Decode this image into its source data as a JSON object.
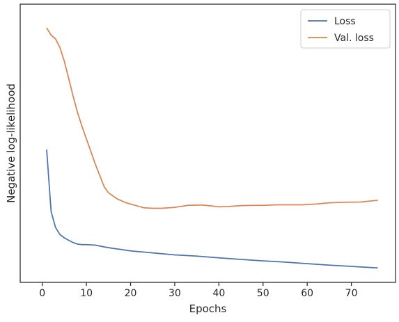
{
  "chart_data": {
    "type": "line",
    "xlabel": "Epochs",
    "ylabel": "Negative log-likelihood",
    "xlim": [
      -5,
      80
    ],
    "ylim": [
      0.0,
      1.0
    ],
    "xticks": [
      "0",
      "10",
      "20",
      "30",
      "40",
      "50",
      "60",
      "70"
    ],
    "yticks_visible": false,
    "grid": false,
    "legend_position": "top-right",
    "series": [
      {
        "name": "Loss",
        "color": "#4c72b0",
        "points": [
          [
            1,
            0.503
          ],
          [
            2,
            0.255
          ],
          [
            3,
            0.192
          ],
          [
            4,
            0.163
          ],
          [
            5,
            0.15
          ],
          [
            6,
            0.14
          ],
          [
            7,
            0.131
          ],
          [
            8,
            0.125
          ],
          [
            9,
            0.123
          ],
          [
            10,
            0.123
          ],
          [
            11,
            0.122
          ],
          [
            12,
            0.121
          ],
          [
            14,
            0.114
          ],
          [
            16,
            0.108
          ],
          [
            18,
            0.103
          ],
          [
            20,
            0.098
          ],
          [
            25,
            0.09
          ],
          [
            30,
            0.082
          ],
          [
            35,
            0.077
          ],
          [
            40,
            0.07
          ],
          [
            45,
            0.064
          ],
          [
            50,
            0.058
          ],
          [
            55,
            0.053
          ],
          [
            60,
            0.047
          ],
          [
            65,
            0.041
          ],
          [
            70,
            0.036
          ],
          [
            76,
            0.03
          ]
        ]
      },
      {
        "name": "Val. loss",
        "color": "#dd8452",
        "points": [
          [
            1,
            0.989
          ],
          [
            2,
            0.96
          ],
          [
            3,
            0.945
          ],
          [
            4,
            0.91
          ],
          [
            5,
            0.855
          ],
          [
            6,
            0.785
          ],
          [
            7,
            0.715
          ],
          [
            8,
            0.65
          ],
          [
            9,
            0.595
          ],
          [
            10,
            0.545
          ],
          [
            11,
            0.495
          ],
          [
            12,
            0.445
          ],
          [
            13,
            0.4
          ],
          [
            14,
            0.355
          ],
          [
            15,
            0.33
          ],
          [
            17,
            0.305
          ],
          [
            19,
            0.29
          ],
          [
            21,
            0.28
          ],
          [
            23,
            0.27
          ],
          [
            25,
            0.268
          ],
          [
            27,
            0.268
          ],
          [
            30,
            0.272
          ],
          [
            33,
            0.28
          ],
          [
            36,
            0.281
          ],
          [
            38,
            0.278
          ],
          [
            40,
            0.274
          ],
          [
            42,
            0.275
          ],
          [
            45,
            0.279
          ],
          [
            48,
            0.28
          ],
          [
            50,
            0.28
          ],
          [
            53,
            0.282
          ],
          [
            56,
            0.282
          ],
          [
            59,
            0.282
          ],
          [
            62,
            0.285
          ],
          [
            65,
            0.29
          ],
          [
            68,
            0.292
          ],
          [
            72,
            0.293
          ],
          [
            76,
            0.3
          ]
        ]
      }
    ]
  }
}
